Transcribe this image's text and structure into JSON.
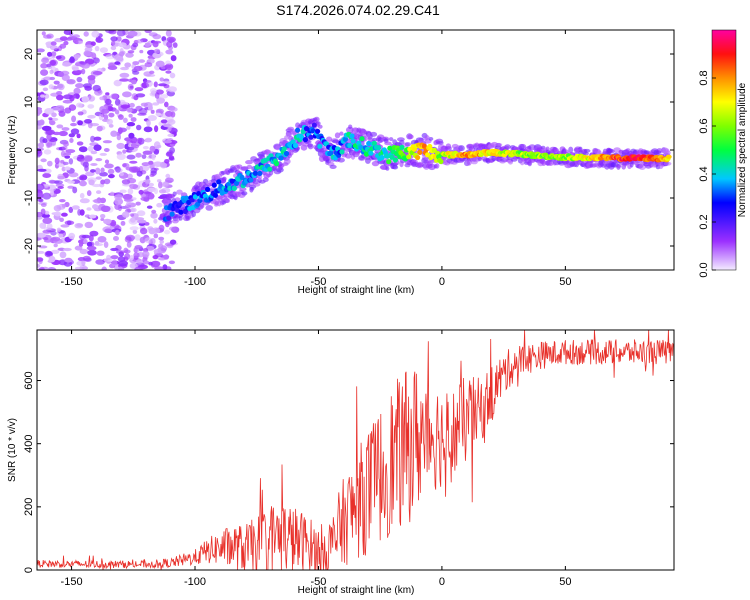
{
  "title": "S174.2026.074.02.29.C41",
  "chart_data": [
    {
      "type": "heatmap",
      "xlabel": "Height of straight line (km)",
      "ylabel": "Frequency (Hz)",
      "xlim": [
        -164,
        94
      ],
      "ylim": [
        -25,
        25
      ],
      "xticks": [
        -150,
        -100,
        -50,
        0,
        50
      ],
      "yticks": [
        -20,
        -10,
        0,
        10,
        20
      ],
      "colorbar": {
        "label": "Normalized spectral amplitude",
        "range": [
          0,
          1
        ],
        "ticks": [
          0.0,
          0.2,
          0.4,
          0.6,
          0.8
        ],
        "tick_labels": [
          "0.0",
          "0.2",
          "0.4",
          "0.6",
          "0.8"
        ]
      },
      "ridge": {
        "x": [
          -112,
          -100,
          -90,
          -80,
          -72,
          -65,
          -58,
          -52,
          -45,
          -38,
          -30,
          -22,
          -15,
          -8,
          0,
          10,
          20,
          30,
          40,
          50,
          60,
          70,
          80,
          92
        ],
        "y": [
          -13,
          -10.5,
          -8,
          -6,
          -3.5,
          -1,
          3,
          4,
          -1,
          2,
          0.5,
          -1,
          -0.5,
          0,
          -1,
          -1,
          -0.5,
          -0.8,
          -1.2,
          -1.5,
          -1.6,
          -1.7,
          -1.7,
          -1.8
        ],
        "amplitude": [
          0.28,
          0.3,
          0.32,
          0.36,
          0.4,
          0.42,
          0.38,
          0.3,
          0.34,
          0.4,
          0.42,
          0.45,
          0.55,
          0.8,
          0.6,
          0.82,
          0.7,
          0.62,
          0.6,
          0.62,
          0.7,
          0.85,
          0.9,
          0.75
        ]
      },
      "noise_region": {
        "x_range": [
          -164,
          -108
        ],
        "amplitude": [
          0.02,
          0.15
        ]
      }
    },
    {
      "type": "line",
      "xlabel": "Height of straight line (km)",
      "ylabel": "SNR (10 * v/v)",
      "xlim": [
        -164,
        94
      ],
      "ylim": [
        0,
        760
      ],
      "xticks": [
        -150,
        -100,
        -50,
        0,
        50
      ],
      "yticks": [
        0,
        200,
        400,
        600
      ],
      "series": [
        {
          "name": "SNR",
          "color": "#e8302a",
          "x": [
            -164,
            -140,
            -120,
            -110,
            -100,
            -95,
            -90,
            -85,
            -80,
            -75,
            -70,
            -65,
            -60,
            -55,
            -50,
            -45,
            -40,
            -35,
            -30,
            -25,
            -20,
            -15,
            -10,
            -5,
            0,
            5,
            10,
            15,
            20,
            25,
            30,
            40,
            50,
            60,
            70,
            80,
            94
          ],
          "values": [
            20,
            18,
            18,
            22,
            40,
            60,
            70,
            75,
            65,
            80,
            100,
            110,
            95,
            85,
            60,
            70,
            150,
            200,
            250,
            300,
            350,
            380,
            420,
            440,
            420,
            430,
            480,
            500,
            560,
            620,
            660,
            680,
            690,
            690,
            690,
            690,
            690
          ],
          "spread": [
            12,
            12,
            12,
            15,
            25,
            40,
            55,
            70,
            80,
            90,
            110,
            120,
            110,
            95,
            80,
            100,
            140,
            170,
            200,
            220,
            240,
            250,
            240,
            200,
            160,
            150,
            140,
            110,
            90,
            70,
            55,
            45,
            40,
            40,
            40,
            40,
            40
          ]
        }
      ]
    }
  ]
}
